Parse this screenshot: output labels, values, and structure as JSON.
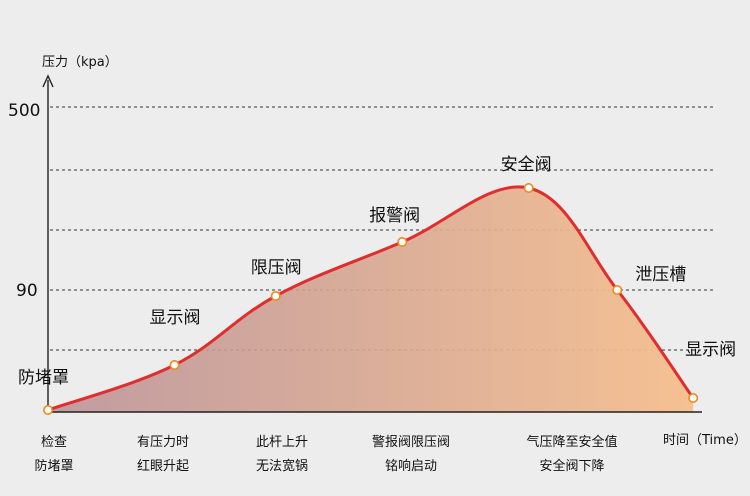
{
  "chart_data": {
    "type": "area",
    "ylabel": "压力（kpa）",
    "xlabel": "时间（Time）",
    "yticks": [
      "500",
      "90"
    ],
    "categories": [
      [
        "检查",
        "防堵罩"
      ],
      [
        "有压力时",
        "红眼升起"
      ],
      [
        "此杆上升",
        "无法宽锅"
      ],
      [
        "警报阀限压阀",
        "铭响启动"
      ],
      [
        "气压降至安全值",
        "安全阀下降"
      ]
    ],
    "points": [
      {
        "label": "防堵罩",
        "x": 0.0,
        "y": 0.0
      },
      {
        "label": "显示阀",
        "x": 1.0,
        "y": 0.15
      },
      {
        "label": "限压阀",
        "x": 1.8,
        "y": 0.38
      },
      {
        "label": "报警阀",
        "x": 2.8,
        "y": 0.56
      },
      {
        "label": "安全阀",
        "x": 3.8,
        "y": 0.74
      },
      {
        "label": "泄压槽",
        "x": 4.5,
        "y": 0.4
      },
      {
        "label": "显示阀",
        "x": 5.1,
        "y": 0.04
      }
    ],
    "colors": {
      "line": "#e02d2d",
      "fill_start": "#b98e93",
      "fill_end": "#f6bf8e",
      "marker": "#f08a1c"
    },
    "grid": true
  }
}
